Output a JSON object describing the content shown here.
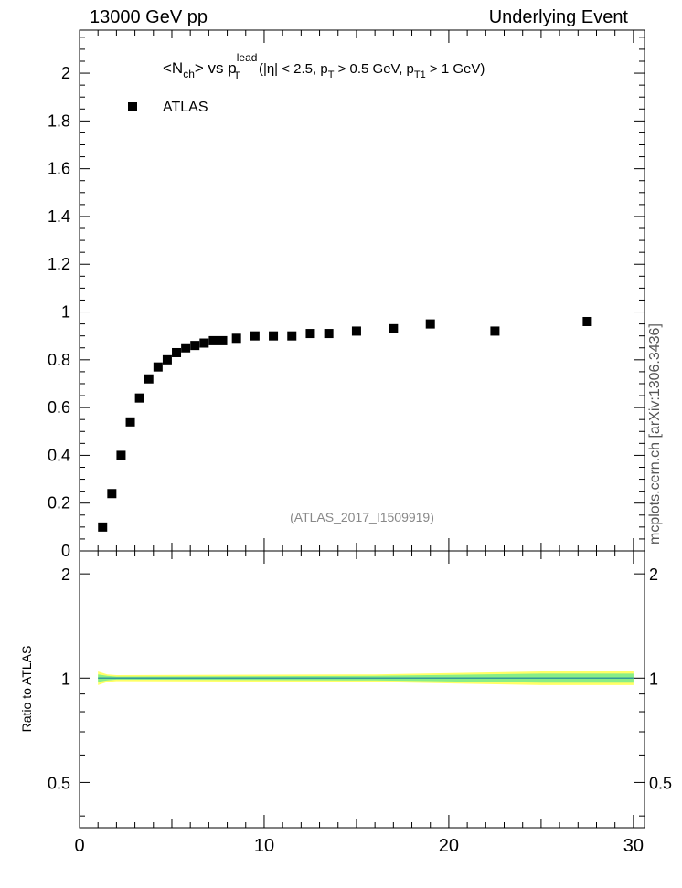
{
  "header": {
    "left": "13000 GeV pp",
    "right": "Underlying Event"
  },
  "side_credit": "mcplots.cern.ch [arXiv:1306.3436]",
  "chart_data": [
    {
      "type": "scatter",
      "panel": "main",
      "title_parts": {
        "lt": "<N",
        "ch": "ch",
        "mid": "> vs p",
        "lead": "lead",
        "T": "T",
        "cuts1": " (|η| < 2.5, p",
        "T2": "T",
        "cuts2": " > 0.5 GeV, p",
        "T1": "T1",
        "cuts3": " > 1 GeV)"
      },
      "legend": [
        "ATLAS"
      ],
      "annotation": "(ATLAS_2017_I1509919)",
      "xlim": [
        0,
        30.6
      ],
      "ylim": [
        0,
        2.18
      ],
      "yticks": [
        0,
        0.2,
        0.4,
        0.6,
        0.8,
        1,
        1.2,
        1.4,
        1.6,
        1.8,
        2
      ],
      "ytick_labels": [
        "0",
        "0.2",
        "0.4",
        "0.6",
        "0.8",
        "1",
        "1.2",
        "1.4",
        "1.6",
        "1.8",
        "2"
      ],
      "series": [
        {
          "name": "ATLAS",
          "color": "#000000",
          "x": [
            1.25,
            1.75,
            2.25,
            2.75,
            3.25,
            3.75,
            4.25,
            4.75,
            5.25,
            5.75,
            6.25,
            6.75,
            7.25,
            7.75,
            8.5,
            9.5,
            10.5,
            11.5,
            12.5,
            13.5,
            15.0,
            17.0,
            19.0,
            22.5,
            27.5
          ],
          "y": [
            0.1,
            0.24,
            0.4,
            0.54,
            0.64,
            0.72,
            0.77,
            0.8,
            0.83,
            0.85,
            0.86,
            0.87,
            0.88,
            0.88,
            0.89,
            0.9,
            0.9,
            0.9,
            0.91,
            0.91,
            0.92,
            0.93,
            0.95,
            0.92,
            0.96
          ]
        }
      ]
    },
    {
      "type": "line",
      "panel": "ratio",
      "ylabel": "Ratio to ATLAS",
      "xlim": [
        0,
        30.6
      ],
      "ylim": [
        0.37,
        2.33
      ],
      "ylog": true,
      "yticks": [
        0.5,
        1,
        2
      ],
      "ytick_labels": [
        "0.5",
        "1",
        "2"
      ],
      "xticks": [
        0,
        10,
        20,
        30
      ],
      "xtick_labels": [
        "0",
        "10",
        "20",
        "30"
      ],
      "bands": [
        {
          "x": [
            1.0,
            1.5,
            2.0,
            16.0,
            25.0,
            30.0
          ],
          "lo": [
            0.955,
            0.975,
            0.98,
            0.975,
            0.955,
            0.955
          ],
          "hi": [
            1.045,
            1.025,
            1.02,
            1.025,
            1.045,
            1.045
          ],
          "color": "#ffff66"
        },
        {
          "x": [
            1.0,
            1.5,
            2.0,
            16.0,
            25.0,
            30.0
          ],
          "lo": [
            0.975,
            0.985,
            0.99,
            0.985,
            0.97,
            0.97
          ],
          "hi": [
            1.025,
            1.015,
            1.01,
            1.015,
            1.03,
            1.03
          ],
          "color": "#88ee88"
        }
      ],
      "reference": {
        "x": [
          1.0,
          30.0
        ],
        "y": 1.0,
        "color": "#339999"
      }
    }
  ]
}
